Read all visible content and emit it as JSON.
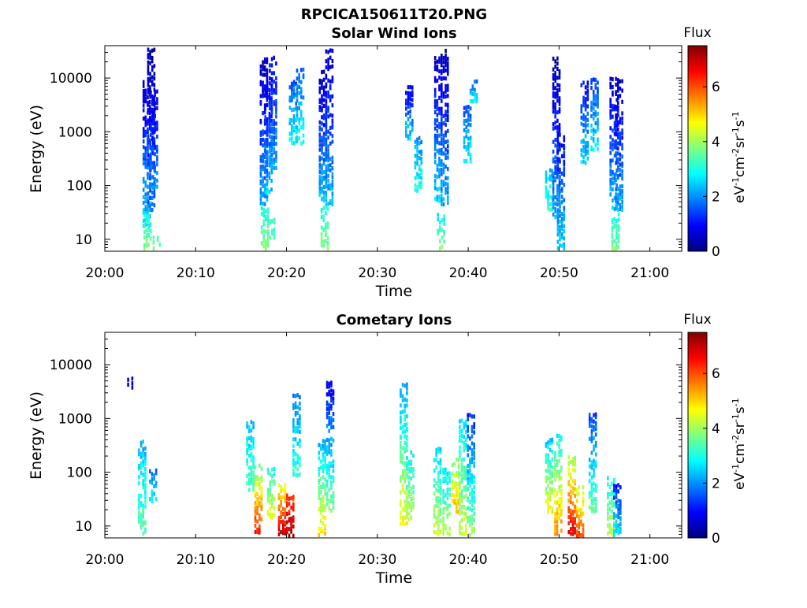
{
  "figure": {
    "title": "RPCICA150611T20.PNG"
  },
  "colorbar": {
    "label": "Flux",
    "unit_base": "eV",
    "unit_cm": "cm",
    "unit_sr": "sr",
    "unit_s": "s",
    "unit_exp": "-1",
    "unit_exp2": "-2",
    "ticks": [
      "0",
      "2",
      "4",
      "6"
    ],
    "range": [
      0,
      7.5
    ],
    "colormap": [
      "#00007f",
      "#0000ff",
      "#007fff",
      "#00ffff",
      "#7fff7f",
      "#ffff00",
      "#ff7f00",
      "#ff0000",
      "#7f0000"
    ]
  },
  "chart_data": [
    {
      "type": "heatmap",
      "title": "Solar Wind Ions",
      "xlabel": "Time",
      "ylabel": "Energy (eV)",
      "x_ticks": [
        "20:00",
        "20:10",
        "20:20",
        "20:30",
        "20:40",
        "20:50",
        "21:00"
      ],
      "x_range_min": [
        0,
        63.5
      ],
      "y_ticks": [
        "10",
        "100",
        "1000",
        "10000"
      ],
      "y_range": [
        6,
        40000
      ],
      "y_scale": "log",
      "cells": [
        {
          "t": 4.5,
          "e": [
            20,
            9000
          ],
          "f": [
            0.5,
            2.5
          ]
        },
        {
          "t": 5.0,
          "e": [
            40,
            35000
          ],
          "f": [
            0.3,
            1.8
          ]
        },
        {
          "t": 5.3,
          "e": [
            100,
            6000
          ],
          "f": [
            0.6,
            2.0
          ]
        },
        {
          "t": 4.6,
          "e": [
            7,
            30
          ],
          "f": [
            3.0,
            3.8
          ]
        },
        {
          "t": 5.6,
          "e": [
            7,
            12
          ],
          "f": [
            3.2,
            3.6
          ]
        },
        {
          "t": 17.4,
          "e": [
            50,
            25000
          ],
          "f": [
            0.4,
            2.2
          ]
        },
        {
          "t": 17.9,
          "e": [
            80,
            9000
          ],
          "f": [
            0.6,
            2.5
          ]
        },
        {
          "t": 18.4,
          "e": [
            200,
            25000
          ],
          "f": [
            0.8,
            2.2
          ]
        },
        {
          "t": 17.5,
          "e": [
            7,
            40
          ],
          "f": [
            3.0,
            3.9
          ]
        },
        {
          "t": 18.2,
          "e": [
            7,
            25
          ],
          "f": [
            3.1,
            3.8
          ]
        },
        {
          "t": 20.6,
          "e": [
            700,
            9000
          ],
          "f": [
            1.5,
            2.8
          ]
        },
        {
          "t": 21.4,
          "e": [
            700,
            15000
          ],
          "f": [
            1.6,
            2.8
          ]
        },
        {
          "t": 23.9,
          "e": [
            60,
            14000
          ],
          "f": [
            0.4,
            2.4
          ]
        },
        {
          "t": 24.6,
          "e": [
            50,
            35000
          ],
          "f": [
            0.5,
            2.3
          ]
        },
        {
          "t": 24.1,
          "e": [
            7,
            40
          ],
          "f": [
            3.0,
            3.8
          ]
        },
        {
          "t": 33.4,
          "e": [
            800,
            7000
          ],
          "f": [
            0.8,
            2.6
          ]
        },
        {
          "t": 34.4,
          "e": [
            90,
            800
          ],
          "f": [
            2.0,
            3.0
          ]
        },
        {
          "t": 36.6,
          "e": [
            60,
            25000
          ],
          "f": [
            0.5,
            2.5
          ]
        },
        {
          "t": 37.3,
          "e": [
            50,
            35000
          ],
          "f": [
            0.4,
            2.2
          ]
        },
        {
          "t": 36.9,
          "e": [
            6,
            30
          ],
          "f": [
            2.8,
            3.8
          ]
        },
        {
          "t": 39.8,
          "e": [
            300,
            3000
          ],
          "f": [
            1.5,
            2.9
          ]
        },
        {
          "t": 40.5,
          "e": [
            4000,
            9000
          ],
          "f": [
            1.6,
            2.9
          ]
        },
        {
          "t": 48.8,
          "e": [
            40,
            200
          ],
          "f": [
            2.3,
            3.2
          ]
        },
        {
          "t": 49.6,
          "e": [
            30,
            25000
          ],
          "f": [
            0.3,
            2.2
          ]
        },
        {
          "t": 50.1,
          "e": [
            6,
            1000
          ],
          "f": [
            0.8,
            2.6
          ]
        },
        {
          "t": 52.7,
          "e": [
            300,
            9000
          ],
          "f": [
            1.0,
            2.6
          ]
        },
        {
          "t": 53.8,
          "e": [
            500,
            10000
          ],
          "f": [
            1.4,
            2.7
          ]
        },
        {
          "t": 55.9,
          "e": [
            40,
            10000
          ],
          "f": [
            0.5,
            2.4
          ]
        },
        {
          "t": 56.5,
          "e": [
            40,
            10000
          ],
          "f": [
            0.4,
            2.2
          ]
        },
        {
          "t": 56.1,
          "e": [
            6,
            30
          ],
          "f": [
            2.9,
            3.8
          ]
        }
      ]
    },
    {
      "type": "heatmap",
      "title": "Cometary Ions",
      "xlabel": "Time",
      "ylabel": "Energy (eV)",
      "x_ticks": [
        "20:00",
        "20:10",
        "20:20",
        "20:30",
        "20:40",
        "20:50",
        "21:00"
      ],
      "x_range_min": [
        0,
        63.5
      ],
      "y_ticks": [
        "10",
        "100",
        "1000",
        "10000"
      ],
      "y_range": [
        6,
        40000
      ],
      "y_scale": "log",
      "cells": [
        {
          "t": 2.8,
          "e": [
            4000,
            6000
          ],
          "f": [
            0.6,
            1.0
          ]
        },
        {
          "t": 4.0,
          "e": [
            6,
            400
          ],
          "f": [
            2.3,
            3.6
          ]
        },
        {
          "t": 5.2,
          "e": [
            30,
            120
          ],
          "f": [
            1.8,
            2.8
          ]
        },
        {
          "t": 15.9,
          "e": [
            50,
            900
          ],
          "f": [
            2.4,
            3.4
          ]
        },
        {
          "t": 16.8,
          "e": [
            8,
            150
          ],
          "f": [
            3.4,
            6.6
          ]
        },
        {
          "t": 18.2,
          "e": [
            15,
            120
          ],
          "f": [
            3.0,
            4.6
          ]
        },
        {
          "t": 19.4,
          "e": [
            8,
            60
          ],
          "f": [
            4.5,
            7.0
          ]
        },
        {
          "t": 20.3,
          "e": [
            6,
            40
          ],
          "f": [
            6.0,
            7.4
          ]
        },
        {
          "t": 21.0,
          "e": [
            100,
            2800
          ],
          "f": [
            1.8,
            3.2
          ]
        },
        {
          "t": 23.8,
          "e": [
            6,
            400
          ],
          "f": [
            2.2,
            5.2
          ]
        },
        {
          "t": 24.7,
          "e": [
            20,
            5000
          ],
          "f": [
            0.8,
            3.8
          ]
        },
        {
          "t": 32.8,
          "e": [
            10,
            4500
          ],
          "f": [
            2.2,
            4.8
          ]
        },
        {
          "t": 33.5,
          "e": [
            15,
            250
          ],
          "f": [
            2.6,
            4.3
          ]
        },
        {
          "t": 36.5,
          "e": [
            8,
            300
          ],
          "f": [
            2.5,
            4.3
          ]
        },
        {
          "t": 37.5,
          "e": [
            8,
            120
          ],
          "f": [
            2.8,
            4.0
          ]
        },
        {
          "t": 38.5,
          "e": [
            20,
            180
          ],
          "f": [
            3.6,
            5.4
          ]
        },
        {
          "t": 39.3,
          "e": [
            8,
            1000
          ],
          "f": [
            2.6,
            4.4
          ]
        },
        {
          "t": 40.2,
          "e": [
            6,
            1200
          ],
          "f": [
            1.2,
            4.0
          ]
        },
        {
          "t": 48.8,
          "e": [
            20,
            450
          ],
          "f": [
            2.4,
            4.8
          ]
        },
        {
          "t": 49.8,
          "e": [
            8,
            500
          ],
          "f": [
            2.8,
            5.6
          ]
        },
        {
          "t": 51.3,
          "e": [
            8,
            200
          ],
          "f": [
            4.0,
            6.8
          ]
        },
        {
          "t": 52.2,
          "e": [
            6,
            60
          ],
          "f": [
            4.2,
            6.2
          ]
        },
        {
          "t": 53.6,
          "e": [
            20,
            1300
          ],
          "f": [
            1.4,
            3.6
          ]
        },
        {
          "t": 55.6,
          "e": [
            8,
            80
          ],
          "f": [
            2.8,
            4.2
          ]
        },
        {
          "t": 56.3,
          "e": [
            6,
            60
          ],
          "f": [
            1.0,
            3.0
          ]
        }
      ]
    }
  ]
}
